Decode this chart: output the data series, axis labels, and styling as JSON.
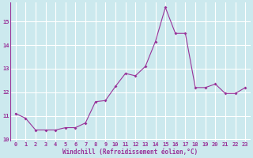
{
  "x": [
    0,
    1,
    2,
    3,
    4,
    5,
    6,
    7,
    8,
    9,
    10,
    11,
    12,
    13,
    14,
    15,
    16,
    17,
    18,
    19,
    20,
    21,
    22,
    23
  ],
  "y": [
    11.1,
    10.9,
    10.4,
    10.4,
    10.4,
    10.5,
    10.5,
    10.7,
    11.6,
    11.65,
    12.25,
    12.8,
    12.7,
    13.1,
    14.15,
    15.6,
    14.5,
    14.5,
    12.2,
    12.2,
    12.35,
    11.95,
    11.95,
    12.2
  ],
  "line_color": "#993399",
  "marker": "D",
  "marker_size": 2.0,
  "bg_color": "#cce9ee",
  "grid_color": "#ffffff",
  "xlabel": "Windchill (Refroidissement éolien,°C)",
  "xlabel_color": "#993399",
  "tick_color": "#993399",
  "ylim": [
    9.9,
    15.8
  ],
  "xlim": [
    -0.5,
    23.5
  ],
  "yticks": [
    10,
    11,
    12,
    13,
    14,
    15
  ],
  "xticks": [
    0,
    1,
    2,
    3,
    4,
    5,
    6,
    7,
    8,
    9,
    10,
    11,
    12,
    13,
    14,
    15,
    16,
    17,
    18,
    19,
    20,
    21,
    22,
    23
  ],
  "tick_fontsize": 5.0,
  "xlabel_fontsize": 5.5
}
